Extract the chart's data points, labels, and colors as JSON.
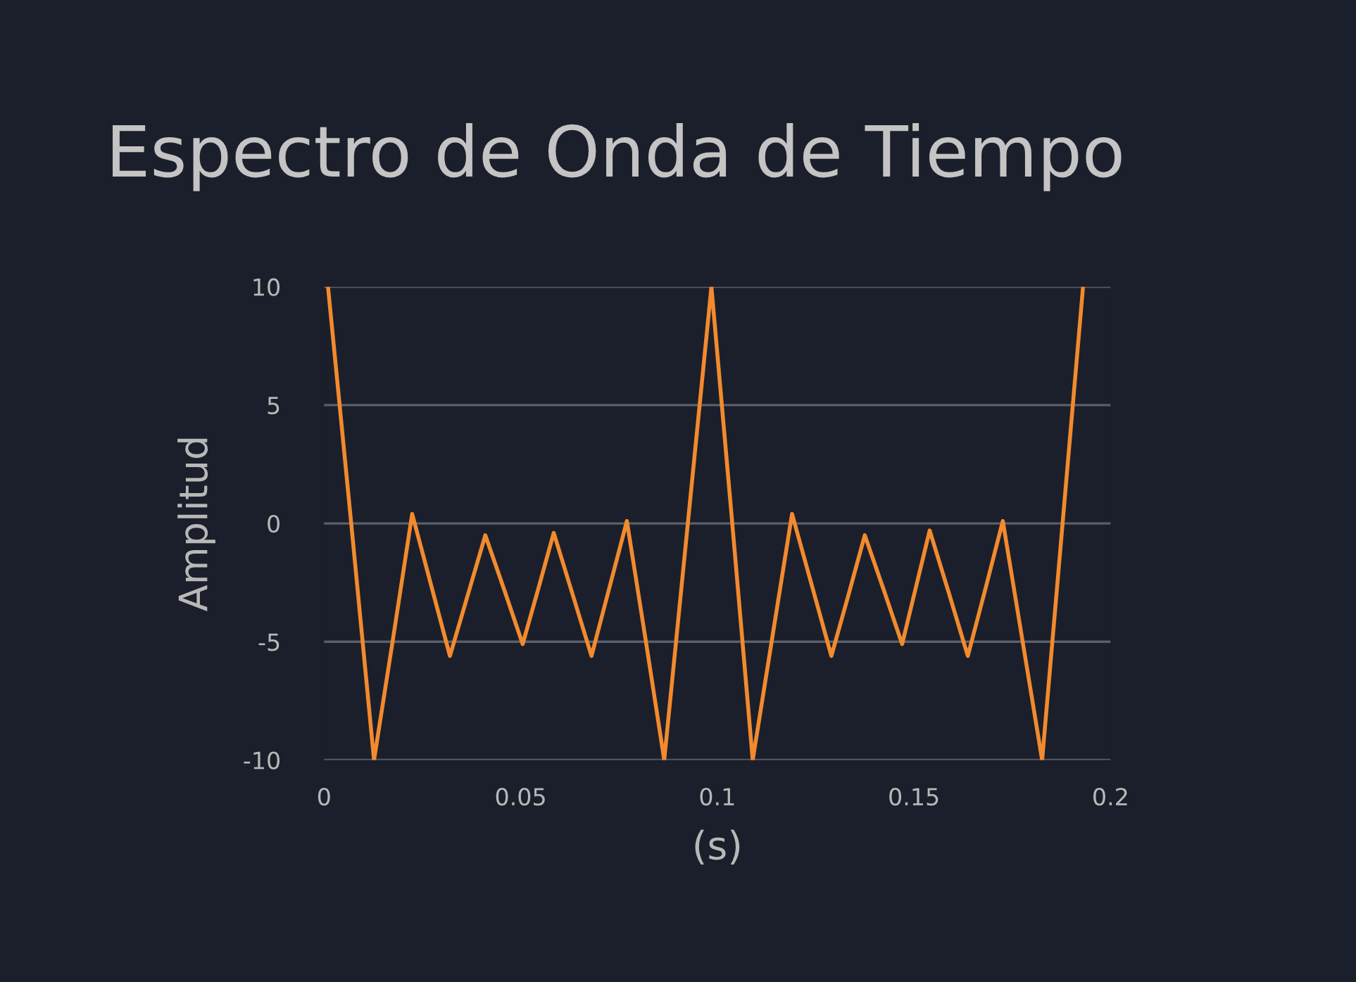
{
  "chart_data": {
    "type": "line",
    "title": "Espectro de Onda de Tiempo",
    "xlabel": "(s)",
    "ylabel": "Amplitud",
    "x": [
      0.001,
      0.0069,
      0.0127,
      0.0176,
      0.0224,
      0.0272,
      0.032,
      0.0365,
      0.041,
      0.0458,
      0.0505,
      0.0545,
      0.0584,
      0.0632,
      0.068,
      0.0725,
      0.077,
      0.0818,
      0.0865,
      0.0925,
      0.0985,
      0.1038,
      0.109,
      0.114,
      0.119,
      0.124,
      0.129,
      0.1333,
      0.1375,
      0.1423,
      0.147,
      0.1505,
      0.154,
      0.1589,
      0.1637,
      0.1682,
      0.1726,
      0.1776,
      0.1826,
      0.1878,
      0.193
    ],
    "series": [
      {
        "color": "#f28a2e",
        "values": [
          10,
          0,
          -10,
          -4.8,
          0.4,
          -2.6,
          -5.6,
          -3.05,
          -0.5,
          -2.8,
          -5.1,
          -2.75,
          -0.4,
          -3,
          -5.6,
          -2.75,
          0.1,
          -4.95,
          -10,
          0,
          10,
          0,
          -10,
          -4.8,
          0.4,
          -2.6,
          -5.6,
          -3.05,
          -0.5,
          -2.8,
          -5.1,
          -2.7,
          -0.3,
          -2.95,
          -5.6,
          -2.75,
          0.1,
          -4.95,
          -10,
          0,
          10
        ]
      }
    ],
    "xlim": [
      0,
      0.2
    ],
    "ylim": [
      -10,
      10
    ],
    "xticks": [
      0,
      0.05,
      0.1,
      0.15,
      0.2
    ],
    "yticks": [
      {
        "value": -10,
        "label": "-10"
      },
      -5,
      0,
      5,
      10
    ],
    "grid": "y",
    "legend": false,
    "marker": "none",
    "line_style": "solid"
  }
}
